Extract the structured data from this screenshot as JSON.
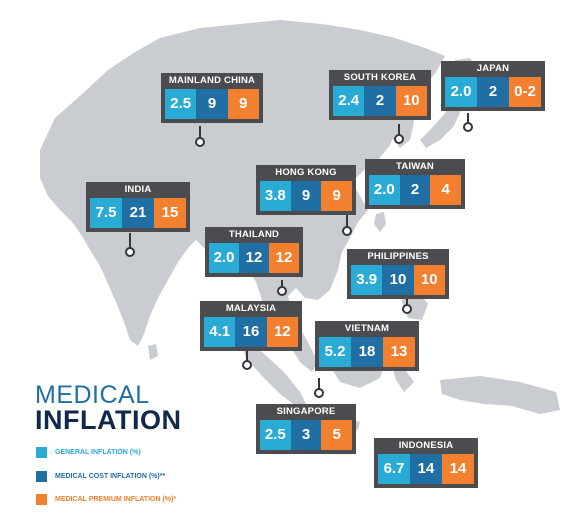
{
  "title": {
    "line1": "MEDICAL",
    "line2": "INFLATION"
  },
  "legend": [
    {
      "label": "GENERAL INFLATION (%)",
      "color": "#29abd6",
      "text_color": "#29abd6"
    },
    {
      "label": "MEDICAL COST INFLATION (%)**",
      "color": "#1f6fa5",
      "text_color": "#1f6fa5"
    },
    {
      "label": "MEDICAL PREMIUM INFLATION (%)*",
      "color": "#f2802e",
      "text_color": "#f2802e"
    }
  ],
  "colors": {
    "land": "#c9ccd0",
    "card": "#4a4c50",
    "general": "#29abd6",
    "medical_cost": "#1f6fa5",
    "premium": "#f2802e"
  },
  "countries": [
    {
      "name": "MAINLAND CHINA",
      "general": "2.5",
      "medical_cost": "9",
      "premium": "9"
    },
    {
      "name": "SOUTH KOREA",
      "general": "2.4",
      "medical_cost": "2",
      "premium": "10"
    },
    {
      "name": "JAPAN",
      "general": "2.0",
      "medical_cost": "2",
      "premium": "0-2"
    },
    {
      "name": "HONG KONG",
      "general": "3.8",
      "medical_cost": "9",
      "premium": "9"
    },
    {
      "name": "TAIWAN",
      "general": "2.0",
      "medical_cost": "2",
      "premium": "4"
    },
    {
      "name": "INDIA",
      "general": "7.5",
      "medical_cost": "21",
      "premium": "15"
    },
    {
      "name": "THAILAND",
      "general": "2.0",
      "medical_cost": "12",
      "premium": "12"
    },
    {
      "name": "PHILIPPINES",
      "general": "3.9",
      "medical_cost": "10",
      "premium": "10"
    },
    {
      "name": "MALAYSIA",
      "general": "4.1",
      "medical_cost": "16",
      "premium": "12"
    },
    {
      "name": "VIETNAM",
      "general": "5.2",
      "medical_cost": "18",
      "premium": "13"
    },
    {
      "name": "SINGAPORE",
      "general": "2.5",
      "medical_cost": "3",
      "premium": "5"
    },
    {
      "name": "INDONESIA",
      "general": "6.7",
      "medical_cost": "14",
      "premium": "14"
    }
  ]
}
